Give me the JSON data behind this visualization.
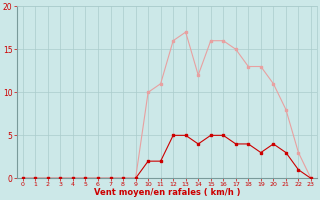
{
  "x": [
    0,
    1,
    2,
    3,
    4,
    5,
    6,
    7,
    8,
    9,
    10,
    11,
    12,
    13,
    14,
    15,
    16,
    17,
    18,
    19,
    20,
    21,
    22,
    23
  ],
  "y_moyen": [
    0,
    0,
    0,
    0,
    0,
    0,
    0,
    0,
    0,
    0,
    2,
    2,
    5,
    5,
    4,
    5,
    5,
    4,
    4,
    3,
    4,
    3,
    1,
    0
  ],
  "y_rafales": [
    0,
    0,
    0,
    0,
    0,
    0,
    0,
    0,
    0,
    0,
    10,
    11,
    16,
    17,
    12,
    16,
    16,
    15,
    13,
    13,
    11,
    8,
    3,
    0
  ],
  "line_color_moyen": "#cc0000",
  "line_color_rafales": "#e8a0a0",
  "background_color": "#cce8e8",
  "grid_color": "#aacccc",
  "axis_label_color": "#cc0000",
  "tick_color": "#cc0000",
  "xlabel": "Vent moyen/en rafales ( km/h )",
  "ylim": [
    0,
    20
  ],
  "xlim": [
    -0.5,
    23.5
  ],
  "yticks": [
    0,
    5,
    10,
    15,
    20
  ],
  "xticks": [
    0,
    1,
    2,
    3,
    4,
    5,
    6,
    7,
    8,
    9,
    10,
    11,
    12,
    13,
    14,
    15,
    16,
    17,
    18,
    19,
    20,
    21,
    22,
    23
  ]
}
